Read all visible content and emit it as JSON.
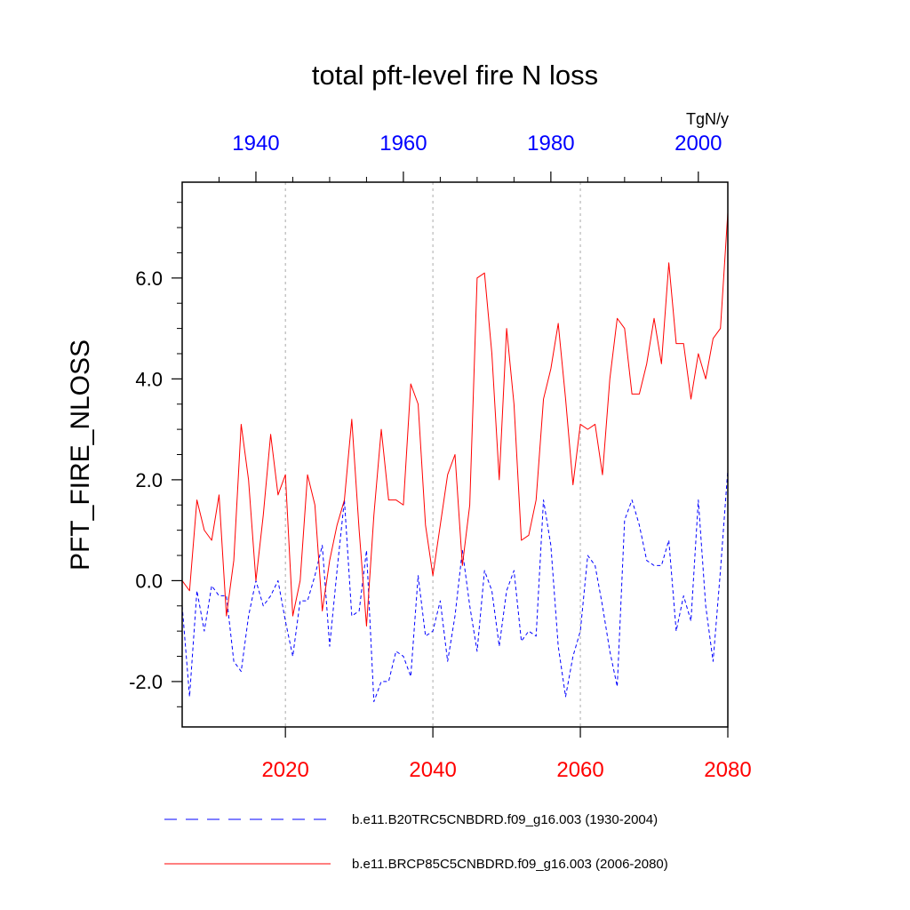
{
  "chart_data": {
    "type": "line",
    "title": "total pft-level fire N loss",
    "ylabel": "PFT_FIRE_NLOSS",
    "units": "TgN/y",
    "ylim": [
      -2.9,
      7.9
    ],
    "yticks": [
      -2.0,
      0.0,
      2.0,
      4.0,
      6.0
    ],
    "ytick_labels": [
      "-2.0",
      "0.0",
      "2.0",
      "4.0",
      "6.0"
    ],
    "bottom_axis": {
      "range": [
        2006,
        2080
      ],
      "ticks": [
        2020,
        2040,
        2060,
        2080
      ],
      "labels": [
        "2020",
        "2040",
        "2060",
        "2080"
      ],
      "color": "#ff0000"
    },
    "top_axis": {
      "range": [
        1930,
        2004
      ],
      "ticks": [
        1940,
        1960,
        1980,
        2000
      ],
      "labels": [
        "1940",
        "1960",
        "1980",
        "2000"
      ],
      "color": "#0000ff"
    },
    "grid": "vertical dotted at bottom-axis ticks",
    "series": [
      {
        "name": "b.e11.B20TRC5CNBDRD.f09_g16.003 (1930-2004)",
        "color": "#0000ff",
        "style": "dashed",
        "axis": "top",
        "x": [
          1930,
          1931,
          1932,
          1933,
          1934,
          1935,
          1936,
          1937,
          1938,
          1939,
          1940,
          1941,
          1942,
          1943,
          1944,
          1945,
          1946,
          1947,
          1948,
          1949,
          1950,
          1951,
          1952,
          1953,
          1954,
          1955,
          1956,
          1957,
          1958,
          1959,
          1960,
          1961,
          1962,
          1963,
          1964,
          1965,
          1966,
          1967,
          1968,
          1969,
          1970,
          1971,
          1972,
          1973,
          1974,
          1975,
          1976,
          1977,
          1978,
          1979,
          1980,
          1981,
          1982,
          1983,
          1984,
          1985,
          1986,
          1987,
          1988,
          1989,
          1990,
          1991,
          1992,
          1993,
          1994,
          1995,
          1996,
          1997,
          1998,
          1999,
          2000,
          2001,
          2002,
          2003,
          2004
        ],
        "values": [
          -0.5,
          -2.3,
          -0.2,
          -1.0,
          -0.1,
          -0.3,
          -0.3,
          -1.6,
          -1.8,
          -0.7,
          0.0,
          -0.5,
          -0.3,
          0.0,
          -0.8,
          -1.5,
          -0.4,
          -0.4,
          0.1,
          0.7,
          -1.3,
          0.2,
          1.6,
          -0.7,
          -0.6,
          0.6,
          -2.4,
          -2.0,
          -2.0,
          -1.4,
          -1.5,
          -1.9,
          0.1,
          -1.1,
          -1.0,
          -0.4,
          -1.6,
          -0.7,
          0.6,
          -0.5,
          -1.4,
          0.2,
          -0.2,
          -1.3,
          -0.2,
          0.2,
          -1.2,
          -1.0,
          -1.1,
          1.6,
          0.7,
          -1.3,
          -2.3,
          -1.5,
          -1.0,
          0.5,
          0.3,
          -0.5,
          -1.4,
          -2.1,
          1.2,
          1.6,
          1.1,
          0.4,
          0.3,
          0.3,
          0.8,
          -1.0,
          -0.3,
          -0.8,
          1.6,
          -0.5,
          -1.6,
          0.2,
          2.2
        ]
      },
      {
        "name": "b.e11.BRCP85C5CNBDRD.f09_g16.003 (2006-2080)",
        "color": "#ff0000",
        "style": "solid",
        "axis": "bottom",
        "x": [
          2006,
          2007,
          2008,
          2009,
          2010,
          2011,
          2012,
          2013,
          2014,
          2015,
          2016,
          2017,
          2018,
          2019,
          2020,
          2021,
          2022,
          2023,
          2024,
          2025,
          2026,
          2027,
          2028,
          2029,
          2030,
          2031,
          2032,
          2033,
          2034,
          2035,
          2036,
          2037,
          2038,
          2039,
          2040,
          2041,
          2042,
          2043,
          2044,
          2045,
          2046,
          2047,
          2048,
          2049,
          2050,
          2051,
          2052,
          2053,
          2054,
          2055,
          2056,
          2057,
          2058,
          2059,
          2060,
          2061,
          2062,
          2063,
          2064,
          2065,
          2066,
          2067,
          2068,
          2069,
          2070,
          2071,
          2072,
          2073,
          2074,
          2075,
          2076,
          2077,
          2078,
          2079,
          2080
        ],
        "values": [
          0.0,
          -0.2,
          1.6,
          1.0,
          0.8,
          1.7,
          -0.7,
          0.4,
          3.1,
          2.0,
          0.0,
          1.3,
          2.9,
          1.7,
          2.1,
          -0.7,
          0.0,
          2.1,
          1.5,
          -0.6,
          0.4,
          1.1,
          1.6,
          3.2,
          1.0,
          -0.9,
          1.3,
          3.0,
          1.6,
          1.6,
          1.5,
          3.9,
          3.5,
          1.1,
          0.1,
          1.1,
          2.1,
          2.5,
          0.3,
          1.5,
          6.0,
          6.1,
          4.5,
          2.0,
          5.0,
          3.5,
          0.8,
          0.9,
          1.6,
          3.6,
          4.2,
          5.1,
          3.6,
          1.9,
          3.1,
          3.0,
          3.1,
          2.1,
          4.0,
          5.2,
          5.0,
          3.7,
          3.7,
          4.3,
          5.2,
          4.3,
          6.3,
          4.7,
          4.7,
          3.6,
          4.5,
          4.0,
          4.8,
          5.0,
          7.3
        ]
      }
    ]
  }
}
